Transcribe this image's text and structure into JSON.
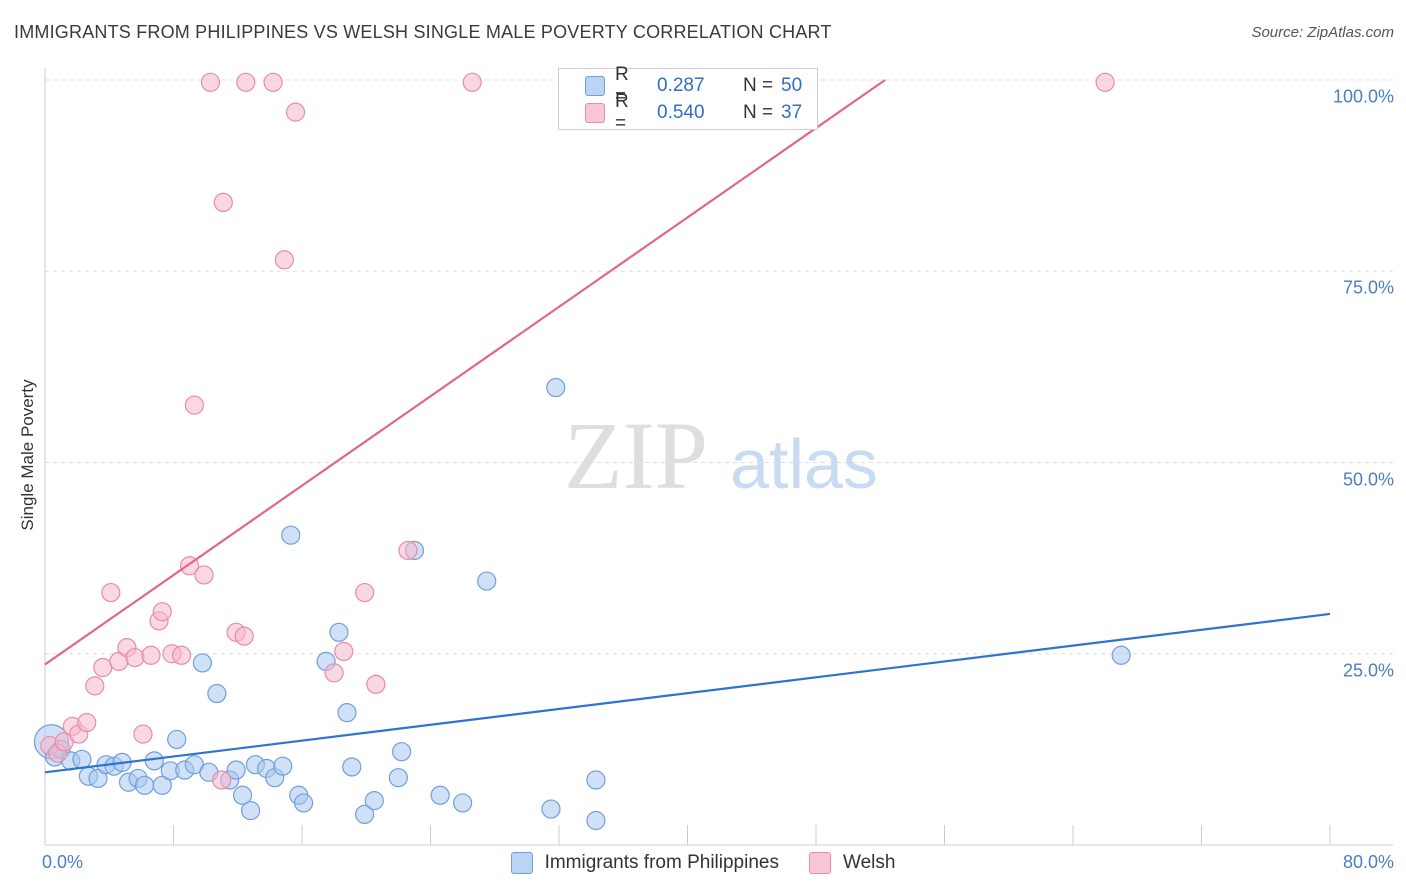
{
  "header": {
    "title": "IMMIGRANTS FROM PHILIPPINES VS WELSH SINGLE MALE POVERTY CORRELATION CHART",
    "source": "Source: ZipAtlas.com"
  },
  "watermark": {
    "zip": "ZIP",
    "atlas": "atlas"
  },
  "legend": {
    "rows": [
      {
        "r_label": "R =",
        "r_value": "0.287",
        "n_label": "N =",
        "n_value": "50"
      },
      {
        "r_label": "R =",
        "r_value": "0.540",
        "n_label": "N =",
        "n_value": "37"
      }
    ]
  },
  "bottom_legend": {
    "items": [
      {
        "label": "Immigrants from Philippines"
      },
      {
        "label": "Welsh"
      }
    ]
  },
  "colors": {
    "blue_fill": "#aac8f0",
    "blue_stroke": "#6f9fdc",
    "blue_line": "#2f73d0",
    "pink_fill": "#f5b8cc",
    "pink_stroke": "#e98aaa",
    "pink_line": "#e0668d",
    "grid": "#dddddd",
    "axis_text": "#4a7fc4"
  },
  "chart_data": {
    "type": "scatter",
    "title": "IMMIGRANTS FROM PHILIPPINES VS WELSH SINGLE MALE POVERTY CORRELATION CHART",
    "xlabel": "",
    "ylabel": "Single Male Poverty",
    "xlim": [
      0,
      80
    ],
    "ylim": [
      0,
      100
    ],
    "x_tick_labels": [
      "0.0%",
      "80.0%"
    ],
    "y_tick_labels": [
      "25.0%",
      "50.0%",
      "75.0%",
      "100.0%"
    ],
    "y_ticks": [
      25,
      50,
      75,
      100
    ],
    "grid": true,
    "series": [
      {
        "name": "Immigrants from Philippines",
        "r": 0.287,
        "n": 50,
        "trend": {
          "x": [
            0,
            80
          ],
          "y": [
            9.5,
            30.2
          ]
        },
        "points": [
          [
            0.4,
            13.5
          ],
          [
            0.6,
            11.5
          ],
          [
            1.0,
            12.5
          ],
          [
            1.6,
            11.0
          ],
          [
            2.3,
            11.2
          ],
          [
            2.7,
            9.0
          ],
          [
            3.3,
            8.7
          ],
          [
            3.8,
            10.5
          ],
          [
            4.3,
            10.3
          ],
          [
            4.8,
            10.8
          ],
          [
            5.2,
            8.2
          ],
          [
            5.8,
            8.7
          ],
          [
            6.2,
            7.8
          ],
          [
            6.8,
            11.0
          ],
          [
            7.3,
            7.8
          ],
          [
            7.8,
            9.7
          ],
          [
            8.2,
            13.8
          ],
          [
            8.7,
            9.8
          ],
          [
            9.3,
            10.5
          ],
          [
            9.8,
            23.8
          ],
          [
            10.2,
            9.5
          ],
          [
            10.7,
            19.8
          ],
          [
            11.5,
            8.5
          ],
          [
            11.9,
            9.8
          ],
          [
            12.3,
            6.5
          ],
          [
            12.8,
            4.5
          ],
          [
            13.1,
            10.5
          ],
          [
            13.8,
            10.0
          ],
          [
            14.3,
            8.8
          ],
          [
            14.8,
            10.3
          ],
          [
            15.3,
            40.5
          ],
          [
            15.8,
            6.5
          ],
          [
            16.1,
            5.5
          ],
          [
            17.5,
            24.0
          ],
          [
            18.3,
            27.8
          ],
          [
            18.8,
            17.3
          ],
          [
            19.1,
            10.2
          ],
          [
            19.9,
            4.0
          ],
          [
            20.5,
            5.8
          ],
          [
            22.2,
            12.2
          ],
          [
            22.0,
            8.8
          ],
          [
            23.0,
            38.5
          ],
          [
            24.6,
            6.5
          ],
          [
            26.0,
            5.5
          ],
          [
            27.5,
            34.5
          ],
          [
            31.5,
            4.7
          ],
          [
            31.8,
            59.8
          ],
          [
            34.3,
            8.5
          ],
          [
            34.3,
            3.2
          ],
          [
            67.0,
            24.8
          ]
        ]
      },
      {
        "name": "Welsh",
        "r": 0.54,
        "n": 37,
        "trend": {
          "x": [
            0,
            52.3
          ],
          "y": [
            23.6,
            100
          ]
        },
        "points": [
          [
            0.3,
            13.0
          ],
          [
            0.8,
            12.0
          ],
          [
            1.2,
            13.5
          ],
          [
            1.7,
            15.5
          ],
          [
            2.1,
            14.5
          ],
          [
            2.6,
            16.0
          ],
          [
            3.1,
            20.8
          ],
          [
            3.6,
            23.2
          ],
          [
            4.1,
            33.0
          ],
          [
            4.6,
            24.0
          ],
          [
            5.1,
            25.8
          ],
          [
            5.6,
            24.5
          ],
          [
            6.1,
            14.5
          ],
          [
            6.6,
            24.8
          ],
          [
            7.1,
            29.3
          ],
          [
            7.3,
            30.5
          ],
          [
            7.9,
            25.0
          ],
          [
            8.5,
            24.8
          ],
          [
            9.0,
            36.5
          ],
          [
            9.3,
            57.5
          ],
          [
            9.9,
            35.3
          ],
          [
            10.3,
            99.7
          ],
          [
            11.0,
            8.5
          ],
          [
            11.1,
            84.0
          ],
          [
            11.9,
            27.8
          ],
          [
            12.4,
            27.3
          ],
          [
            12.5,
            99.7
          ],
          [
            14.2,
            99.7
          ],
          [
            14.9,
            76.5
          ],
          [
            15.6,
            95.8
          ],
          [
            18.0,
            22.5
          ],
          [
            18.6,
            25.3
          ],
          [
            19.9,
            33.0
          ],
          [
            20.6,
            21.0
          ],
          [
            22.6,
            38.5
          ],
          [
            26.6,
            99.7
          ],
          [
            66.0,
            99.7
          ]
        ]
      }
    ]
  }
}
